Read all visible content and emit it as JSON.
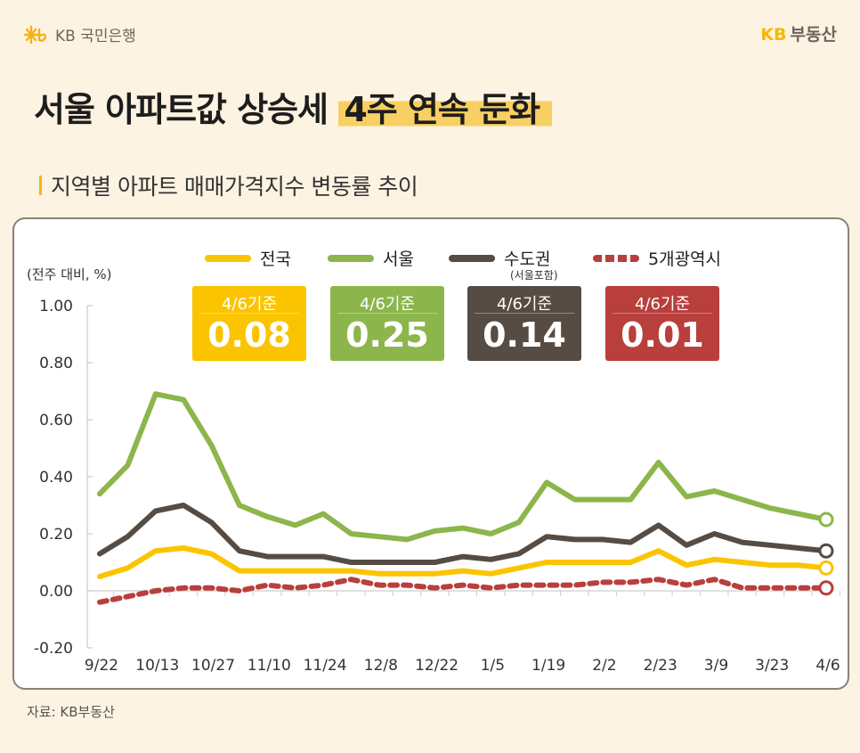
{
  "header": {
    "bank_logo": "KB 국민은행",
    "brand_kb": "KB",
    "brand_name": "부동산"
  },
  "title": {
    "main": "서울 아파트값 상승세",
    "highlight": "4주 연속 둔화"
  },
  "subtitle": "지역별 아파트 매매가격지수 변동률 추이",
  "source": "자료: KB부동산",
  "colors": {
    "nationwide": "#fbc400",
    "seoul": "#8cb64b",
    "capital": "#564c43",
    "metro5": "#b93f3c",
    "background": "#fdf3e2",
    "highlight": "#f8cf62"
  },
  "badges": [
    {
      "label": "4/6기준",
      "value": "0.08",
      "color": "#fbc400"
    },
    {
      "label": "4/6기준",
      "value": "0.25",
      "color": "#8cb64b"
    },
    {
      "label": "4/6기준",
      "value": "0.14",
      "color": "#564c43"
    },
    {
      "label": "4/6기준",
      "value": "0.01",
      "color": "#b93f3c"
    }
  ],
  "chart_data": {
    "type": "line",
    "ylabel": "(전주 대비, %)",
    "ylim": [
      -0.2,
      1.0
    ],
    "yticks": [
      "1.00",
      "0.80",
      "0.60",
      "0.40",
      "0.20",
      "0.00",
      "-0.20"
    ],
    "grid": false,
    "legend_position": "top",
    "legend_note": "(서울포함)",
    "x": [
      "9/22",
      "9/29",
      "10/13",
      "10/20",
      "10/27",
      "11/3",
      "11/10",
      "11/17",
      "11/24",
      "12/1",
      "12/8",
      "12/15",
      "12/22",
      "12/29",
      "1/5",
      "1/12",
      "1/19",
      "1/26",
      "2/2",
      "2/9",
      "2/23",
      "3/2",
      "3/9",
      "3/16",
      "3/23",
      "3/30",
      "4/6"
    ],
    "xtick_labels": [
      "9/22",
      "10/13",
      "10/27",
      "11/10",
      "11/24",
      "12/8",
      "12/22",
      "1/5",
      "1/19",
      "2/2",
      "2/23",
      "3/9",
      "3/23",
      "4/6"
    ],
    "series": [
      {
        "name": "전국",
        "style": "solid",
        "color": "#fbc400",
        "values": [
          0.05,
          0.08,
          0.14,
          0.15,
          0.13,
          0.07,
          0.07,
          0.07,
          0.07,
          0.07,
          0.06,
          0.06,
          0.06,
          0.07,
          0.06,
          0.08,
          0.1,
          0.1,
          0.1,
          0.1,
          0.14,
          0.09,
          0.11,
          0.1,
          0.09,
          0.09,
          0.08
        ]
      },
      {
        "name": "서울",
        "style": "solid",
        "color": "#8cb64b",
        "values": [
          0.34,
          0.44,
          0.69,
          0.67,
          0.51,
          0.3,
          0.26,
          0.23,
          0.27,
          0.2,
          0.19,
          0.18,
          0.21,
          0.22,
          0.2,
          0.24,
          0.38,
          0.32,
          0.32,
          0.32,
          0.45,
          0.33,
          0.35,
          0.32,
          0.29,
          0.27,
          0.25
        ]
      },
      {
        "name": "수도권",
        "style": "solid",
        "color": "#564c43",
        "values": [
          0.13,
          0.19,
          0.28,
          0.3,
          0.24,
          0.14,
          0.12,
          0.12,
          0.12,
          0.1,
          0.1,
          0.1,
          0.1,
          0.12,
          0.11,
          0.13,
          0.19,
          0.18,
          0.18,
          0.17,
          0.23,
          0.16,
          0.2,
          0.17,
          0.16,
          0.15,
          0.14
        ]
      },
      {
        "name": "5개광역시",
        "style": "dashed",
        "color": "#b93f3c",
        "values": [
          -0.04,
          -0.02,
          0.0,
          0.01,
          0.01,
          0.0,
          0.02,
          0.01,
          0.02,
          0.04,
          0.02,
          0.02,
          0.01,
          0.02,
          0.01,
          0.02,
          0.02,
          0.02,
          0.03,
          0.03,
          0.04,
          0.02,
          0.04,
          0.01,
          0.01,
          0.01,
          0.01
        ]
      }
    ]
  }
}
